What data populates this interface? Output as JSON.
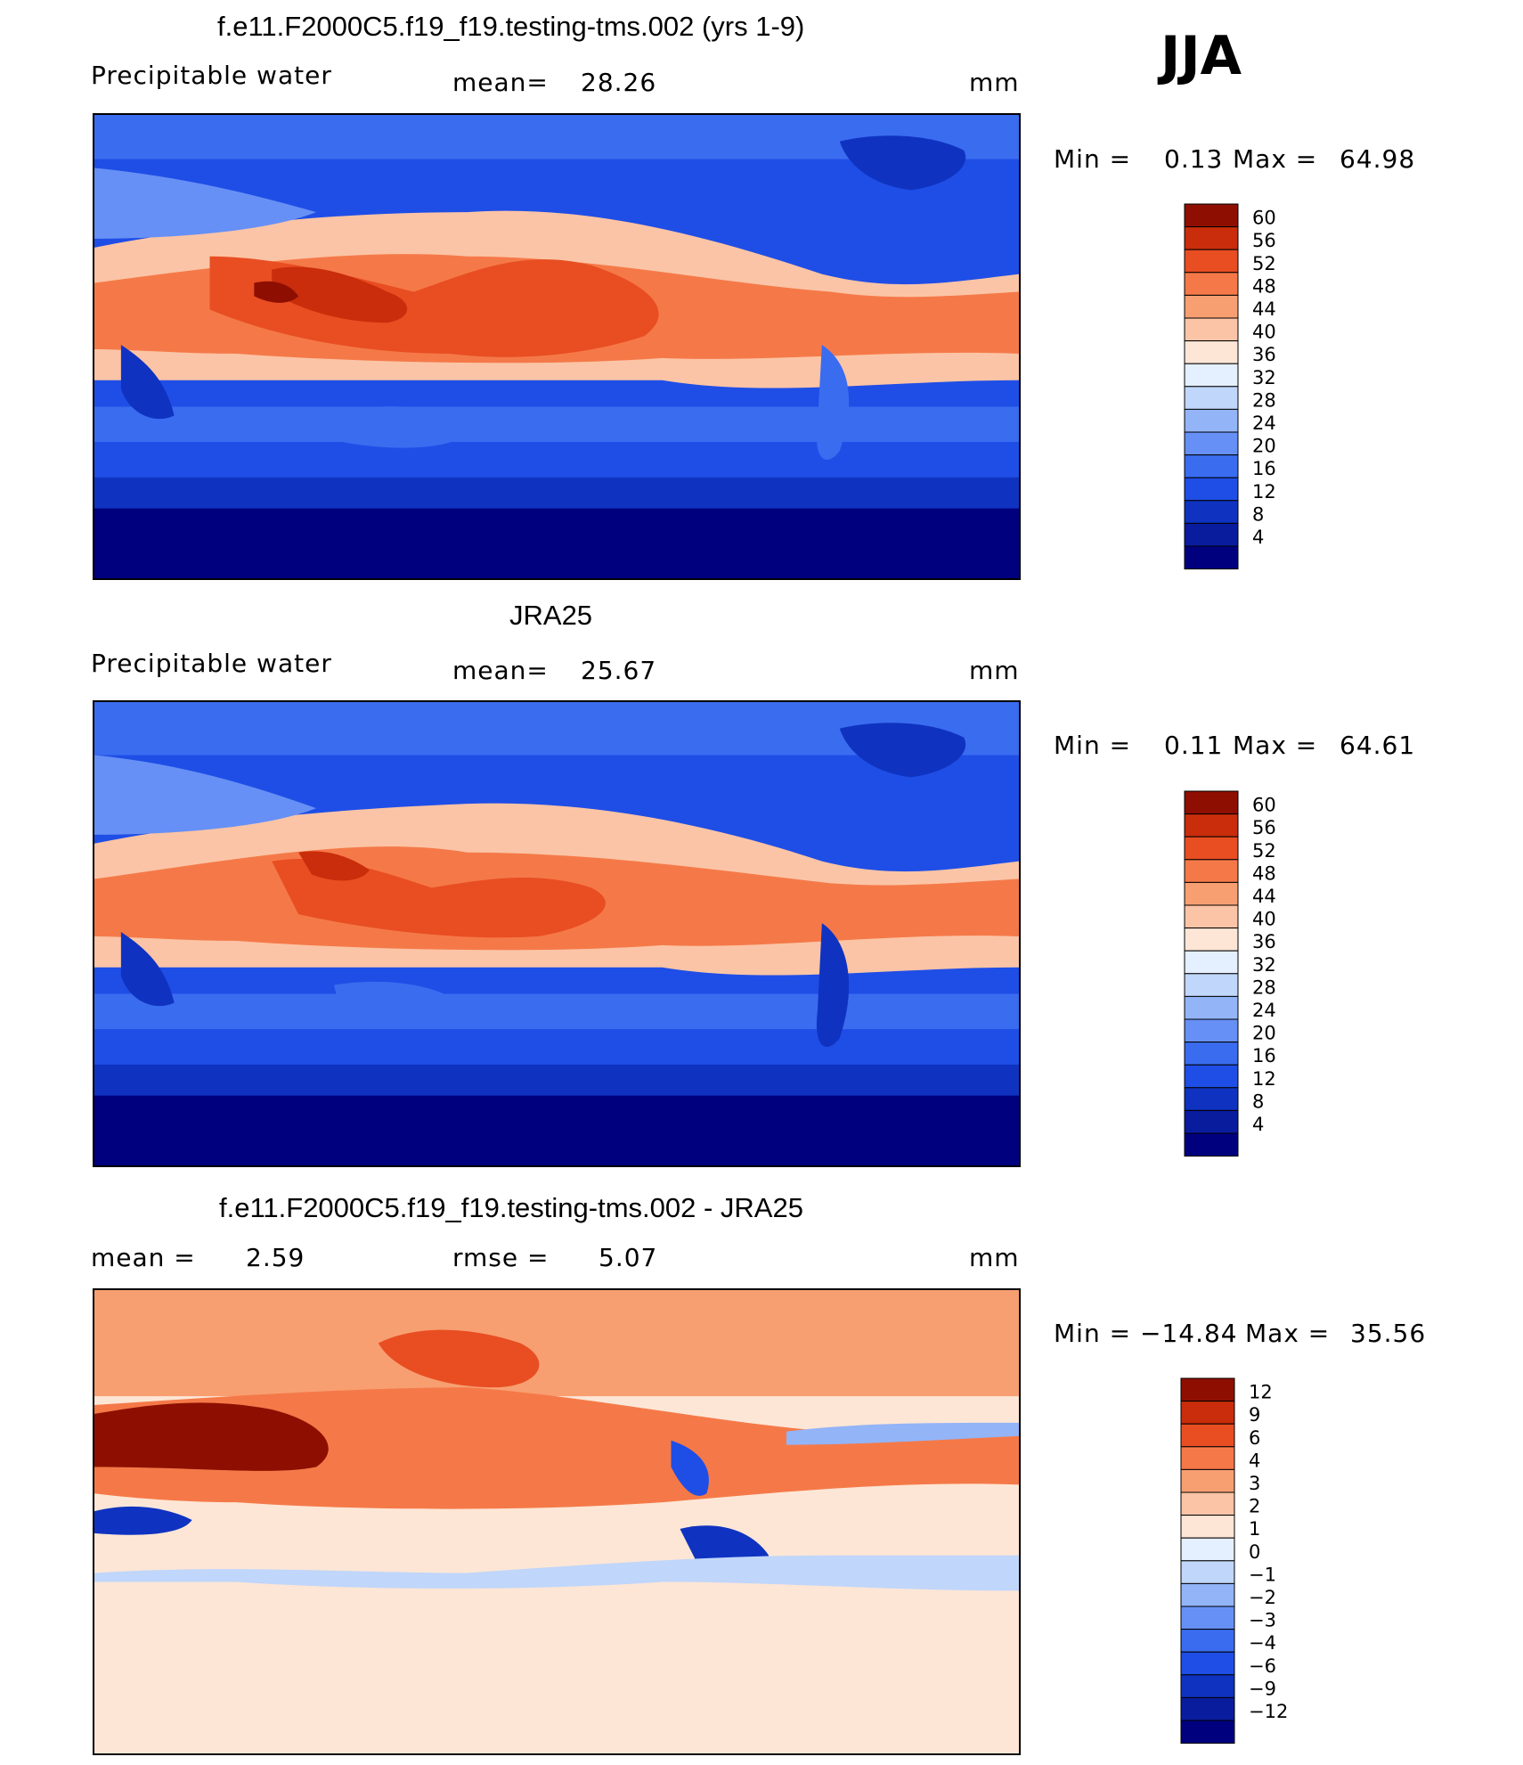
{
  "season": "JJA",
  "units": "mm",
  "panels": [
    {
      "title": "f.e11.F2000C5.f19_f19.testing-tms.002 (yrs 1-9)",
      "variable": "Precipitable water",
      "mean_label": "mean=",
      "mean_value": "28.26",
      "min_label": "Min =",
      "min_value": "0.13",
      "max_label": "Max =",
      "max_value": "64.98"
    },
    {
      "title": "JRA25",
      "variable": "Precipitable water",
      "mean_label": "mean=",
      "mean_value": "25.67",
      "min_label": "Min =",
      "min_value": "0.11",
      "max_label": "Max =",
      "max_value": "64.61"
    },
    {
      "title": "f.e11.F2000C5.f19_f19.testing-tms.002 - JRA25",
      "mean_label": "mean =",
      "mean_value": "2.59",
      "rmse_label": "rmse =",
      "rmse_value": "5.07",
      "min_label": "Min =",
      "min_value": "−14.84",
      "max_label": "Max =",
      "max_value": "35.56"
    }
  ],
  "colors": {
    "abs_scale": [
      "#00007f",
      "#0a1c9e",
      "#0f33c0",
      "#1f4ee6",
      "#3a6cf0",
      "#6690f5",
      "#93b4f7",
      "#c0d6fa",
      "#e4efff",
      "#fde6d6",
      "#fbc4a6",
      "#f89f72",
      "#f57948",
      "#e84e22",
      "#c92d0b",
      "#8e0f02"
    ],
    "diff_scale": [
      "#00007f",
      "#0a1c9e",
      "#0f33c0",
      "#1f4ee6",
      "#3a6cf0",
      "#6690f5",
      "#93b4f7",
      "#c0d6fa",
      "#e4efff",
      "#fde6d6",
      "#fbc4a6",
      "#f89f72",
      "#f57948",
      "#e84e22",
      "#c92d0b",
      "#8e0f02"
    ]
  },
  "chart_data": [
    {
      "type": "heatmap",
      "title": "f.e11.F2000C5.f19_f19.testing-tms.002 (yrs 1-9)",
      "subtitle": "Precipitable water",
      "units": "mm",
      "mean": 28.26,
      "min": 0.13,
      "max": 64.98,
      "colorbar_levels": [
        4,
        8,
        12,
        16,
        20,
        24,
        28,
        32,
        36,
        40,
        44,
        48,
        52,
        56,
        60
      ],
      "colorbar_labels": [
        "60",
        "56",
        "52",
        "48",
        "44",
        "40",
        "36",
        "32",
        "28",
        "24",
        "20",
        "16",
        "12",
        "8",
        "4"
      ]
    },
    {
      "type": "heatmap",
      "title": "JRA25",
      "subtitle": "Precipitable water",
      "units": "mm",
      "mean": 25.67,
      "min": 0.11,
      "max": 64.61,
      "colorbar_levels": [
        4,
        8,
        12,
        16,
        20,
        24,
        28,
        32,
        36,
        40,
        44,
        48,
        52,
        56,
        60
      ],
      "colorbar_labels": [
        "60",
        "56",
        "52",
        "48",
        "44",
        "40",
        "36",
        "32",
        "28",
        "24",
        "20",
        "16",
        "12",
        "8",
        "4"
      ]
    },
    {
      "type": "heatmap",
      "title": "f.e11.F2000C5.f19_f19.testing-tms.002 - JRA25",
      "units": "mm",
      "mean": 2.59,
      "rmse": 5.07,
      "min": -14.84,
      "max": 35.56,
      "colorbar_levels": [
        -12,
        -9,
        -6,
        -4,
        -3,
        -2,
        -1,
        0,
        1,
        2,
        3,
        4,
        6,
        9,
        12
      ],
      "colorbar_labels": [
        "12",
        "9",
        "6",
        "4",
        "3",
        "2",
        "1",
        "0",
        "−1",
        "−2",
        "−3",
        "−4",
        "−6",
        "−9",
        "−12"
      ]
    }
  ]
}
